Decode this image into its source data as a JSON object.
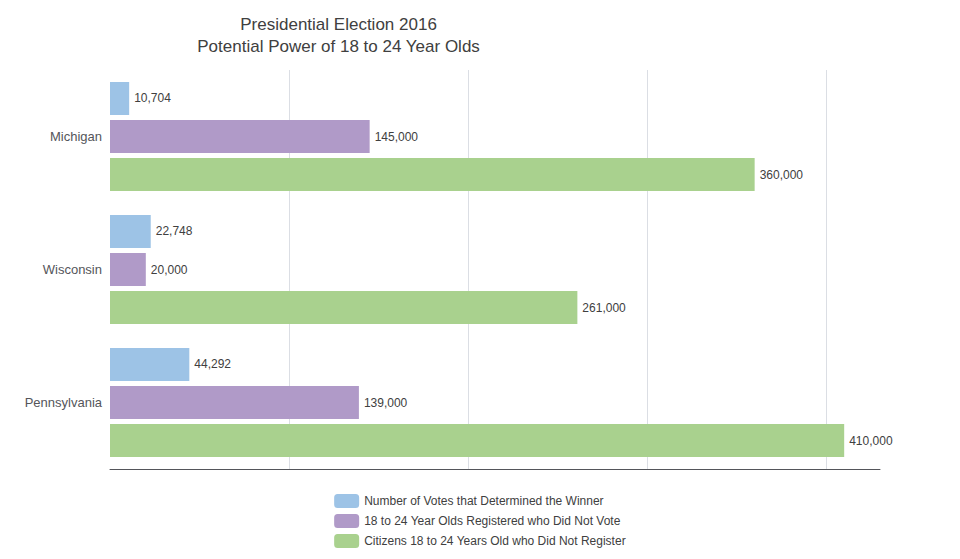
{
  "chart_data": {
    "type": "bar",
    "orientation": "horizontal",
    "title": "Presidential Election 2016\nPotential Power of 18 to 24 Year Olds",
    "categories": [
      "Michigan",
      "Wisconsin",
      "Pennsylvania"
    ],
    "series": [
      {
        "name": "Number of Votes that Determined the Winner",
        "color": "#9dc3e6",
        "values": [
          10704,
          22748,
          44292
        ],
        "value_labels": [
          "10,704",
          "22,748",
          "44,292"
        ]
      },
      {
        "name": "18 to 24 Year Olds Registered who Did Not Vote",
        "color": "#b09ac8",
        "values": [
          145000,
          20000,
          139000
        ],
        "value_labels": [
          "145,000",
          "20,000",
          "139,000"
        ]
      },
      {
        "name": "Citizens 18 to 24 Years Old who Did Not Register",
        "color": "#a9d18e",
        "values": [
          360000,
          261000,
          410000
        ],
        "value_labels": [
          "360,000",
          "261,000",
          "410,000"
        ]
      }
    ],
    "xlim": [
      0,
      430000
    ],
    "xticks": [
      100000,
      200000,
      300000,
      400000
    ],
    "grid": true,
    "data_labels": true,
    "tick_labels": "y",
    "legend": "bottom"
  }
}
